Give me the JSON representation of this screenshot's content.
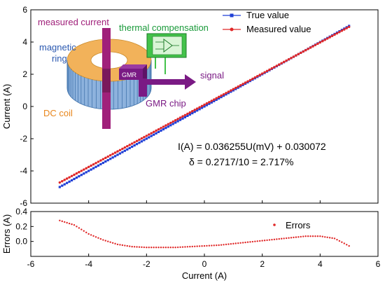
{
  "chart_data": [
    {
      "type": "line",
      "panel": "main",
      "ylabel": "Current (A)",
      "xlim": [
        -6,
        6
      ],
      "ylim": [
        -6,
        6
      ],
      "x_ticks": [
        "-6",
        "-4",
        "-2",
        "0",
        "2",
        "4",
        "6"
      ],
      "y_ticks": [
        "-6",
        "-4",
        "-2",
        "0",
        "2",
        "4",
        "6"
      ],
      "legend_position": "top-right",
      "series": [
        {
          "name": "True value",
          "color": "#1f3fd6",
          "marker": "square",
          "x_range": [
            -5,
            5
          ],
          "y_range": [
            -5,
            5
          ],
          "points": 121
        },
        {
          "name": "Measured value",
          "color": "#e02828",
          "marker": "circle",
          "x_range": [
            -5,
            5
          ],
          "y_range": [
            -4.72,
            4.94
          ],
          "points": 121
        }
      ],
      "equation_lines": [
        "I(A) = 0.036255U(mV) + 0.030072",
        "δ = 0.2717/10 = 2.717%"
      ],
      "diagram_labels": {
        "measured_current": "measured current",
        "thermal_compensation": "thermal compensation",
        "magnetic_ring_1": "magnetic",
        "magnetic_ring_2": "ring",
        "gmr_on_chip": "GMR",
        "signal": "signal",
        "gmr_chip": "GMR chip",
        "dc_coil": "DC coil"
      }
    },
    {
      "type": "scatter",
      "panel": "errors",
      "xlabel": "Current (A)",
      "ylabel": "Errors (A)",
      "xlim": [
        -6,
        6
      ],
      "ylim": [
        -0.2,
        0.4
      ],
      "x_ticks": [
        "-6",
        "-4",
        "-2",
        "0",
        "2",
        "4",
        "6"
      ],
      "y_ticks": [
        "0.4",
        "0.2",
        "0.0"
      ],
      "legend_position": "top-right",
      "series": [
        {
          "name": "Errors",
          "color": "#e02828",
          "x": [
            -5.0,
            -4.5,
            -4.0,
            -3.5,
            -3.0,
            -2.5,
            -2.0,
            -1.5,
            -1.0,
            -0.5,
            0.0,
            0.5,
            1.0,
            1.5,
            2.0,
            2.5,
            3.0,
            3.5,
            4.0,
            4.5,
            5.0
          ],
          "y": [
            0.28,
            0.22,
            0.1,
            0.02,
            -0.04,
            -0.07,
            -0.08,
            -0.08,
            -0.08,
            -0.07,
            -0.06,
            -0.05,
            -0.03,
            -0.01,
            0.01,
            0.03,
            0.05,
            0.07,
            0.07,
            0.04,
            -0.06
          ]
        }
      ]
    }
  ],
  "colors": {
    "true_line": "#1f3fd6",
    "measured_line": "#e02828",
    "measured_current_arrow": "#a0207a",
    "signal_arrow": "#7a1a84",
    "gmr_chip": "#7a1a84",
    "thermal_box": "#43c24a",
    "thermal_text": "#1a9a3a",
    "magnetic_ring_text": "#2a58b0",
    "dc_coil_text": "#e8861c",
    "gmr_chip_text": "#7a1a84"
  }
}
